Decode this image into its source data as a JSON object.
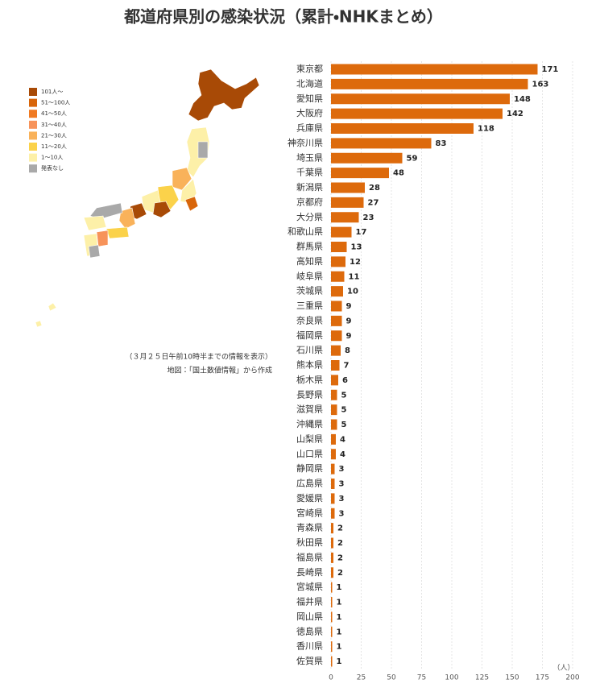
{
  "chart_data": {
    "type": "barh",
    "title": "都道府県別の感染状況（累計・NHKまとめ）",
    "categories": [
      "東京都",
      "北海道",
      "愛知県",
      "大阪府",
      "兵庫県",
      "神奈川県",
      "埼玉県",
      "千葉県",
      "新潟県",
      "京都府",
      "大分県",
      "和歌山県",
      "群馬県",
      "高知県",
      "岐阜県",
      "茨城県",
      "三重県",
      "奈良県",
      "福岡県",
      "石川県",
      "熊本県",
      "栃木県",
      "長野県",
      "滋賀県",
      "沖縄県",
      "山梨県",
      "山口県",
      "静岡県",
      "広島県",
      "愛媛県",
      "宮崎県",
      "青森県",
      "秋田県",
      "福島県",
      "長崎県",
      "宮城県",
      "福井県",
      "岡山県",
      "徳島県",
      "香川県",
      "佐賀県"
    ],
    "values": [
      171,
      163,
      148,
      142,
      118,
      83,
      59,
      48,
      28,
      27,
      23,
      17,
      13,
      12,
      11,
      10,
      9,
      9,
      9,
      8,
      7,
      6,
      5,
      5,
      5,
      4,
      4,
      3,
      3,
      3,
      3,
      2,
      2,
      2,
      2,
      1,
      1,
      1,
      1,
      1,
      1
    ],
    "color": "#dd6a0c",
    "xlim": [
      0,
      200
    ],
    "xticks": [
      0,
      25,
      50,
      75,
      100,
      125,
      150,
      175,
      200
    ],
    "x_unit": "（人）",
    "grid": true
  },
  "map": {
    "legend": [
      {
        "label": "101人～",
        "color": "#a84a06"
      },
      {
        "label": "51～100人",
        "color": "#d8650a"
      },
      {
        "label": "41～50人",
        "color": "#f07a22"
      },
      {
        "label": "31～40人",
        "color": "#f7935a"
      },
      {
        "label": "21～30人",
        "color": "#f9b25a"
      },
      {
        "label": "11～20人",
        "color": "#fbd24a"
      },
      {
        "label": "1～10人",
        "color": "#fdf0a8"
      },
      {
        "label": "発表なし",
        "color": "#a9a9a9"
      }
    ],
    "notes": [
      "（３月２５日午前10時半までの情報を表示）",
      "地図：「国土数値情報」から作成"
    ]
  }
}
